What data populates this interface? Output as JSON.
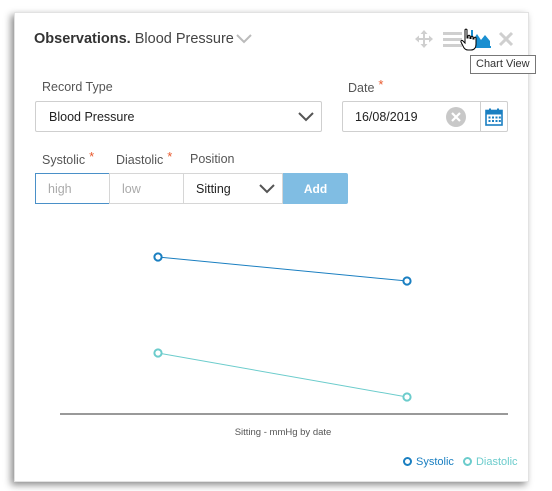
{
  "header": {
    "title": "Observations.",
    "subtitle": "Blood Pressure",
    "tools": [
      "move-icon",
      "list-icon",
      "chart-icon",
      "close-icon"
    ],
    "tooltip": "Chart View"
  },
  "form": {
    "record_type": {
      "label": "Record Type",
      "value": "Blood Pressure"
    },
    "date": {
      "label": "Date",
      "required": "*",
      "value": "16/08/2019"
    },
    "systolic": {
      "label": "Systolic",
      "required": "*",
      "placeholder": "high"
    },
    "diastolic": {
      "label": "Diastolic",
      "required": "*",
      "placeholder": "low"
    },
    "position": {
      "label": "Position",
      "value": "Sitting"
    },
    "add_label": "Add"
  },
  "chart_data": {
    "type": "line",
    "xlabel": "Sitting - mmHg by date",
    "legend_position": "bottom-right",
    "grid": false,
    "x": [
      0,
      1
    ],
    "ylim": [
      0,
      100
    ],
    "series": [
      {
        "name": "Systolic",
        "color": "#1a7fc1",
        "values": [
          78,
          66
        ]
      },
      {
        "name": "Diastolic",
        "color": "#6ccccc",
        "values": [
          30,
          8
        ]
      }
    ]
  },
  "colors": {
    "accent": "#1a7fc1",
    "button": "#80bde3",
    "required": "#e8582c",
    "clear": "#c8c8c8"
  }
}
